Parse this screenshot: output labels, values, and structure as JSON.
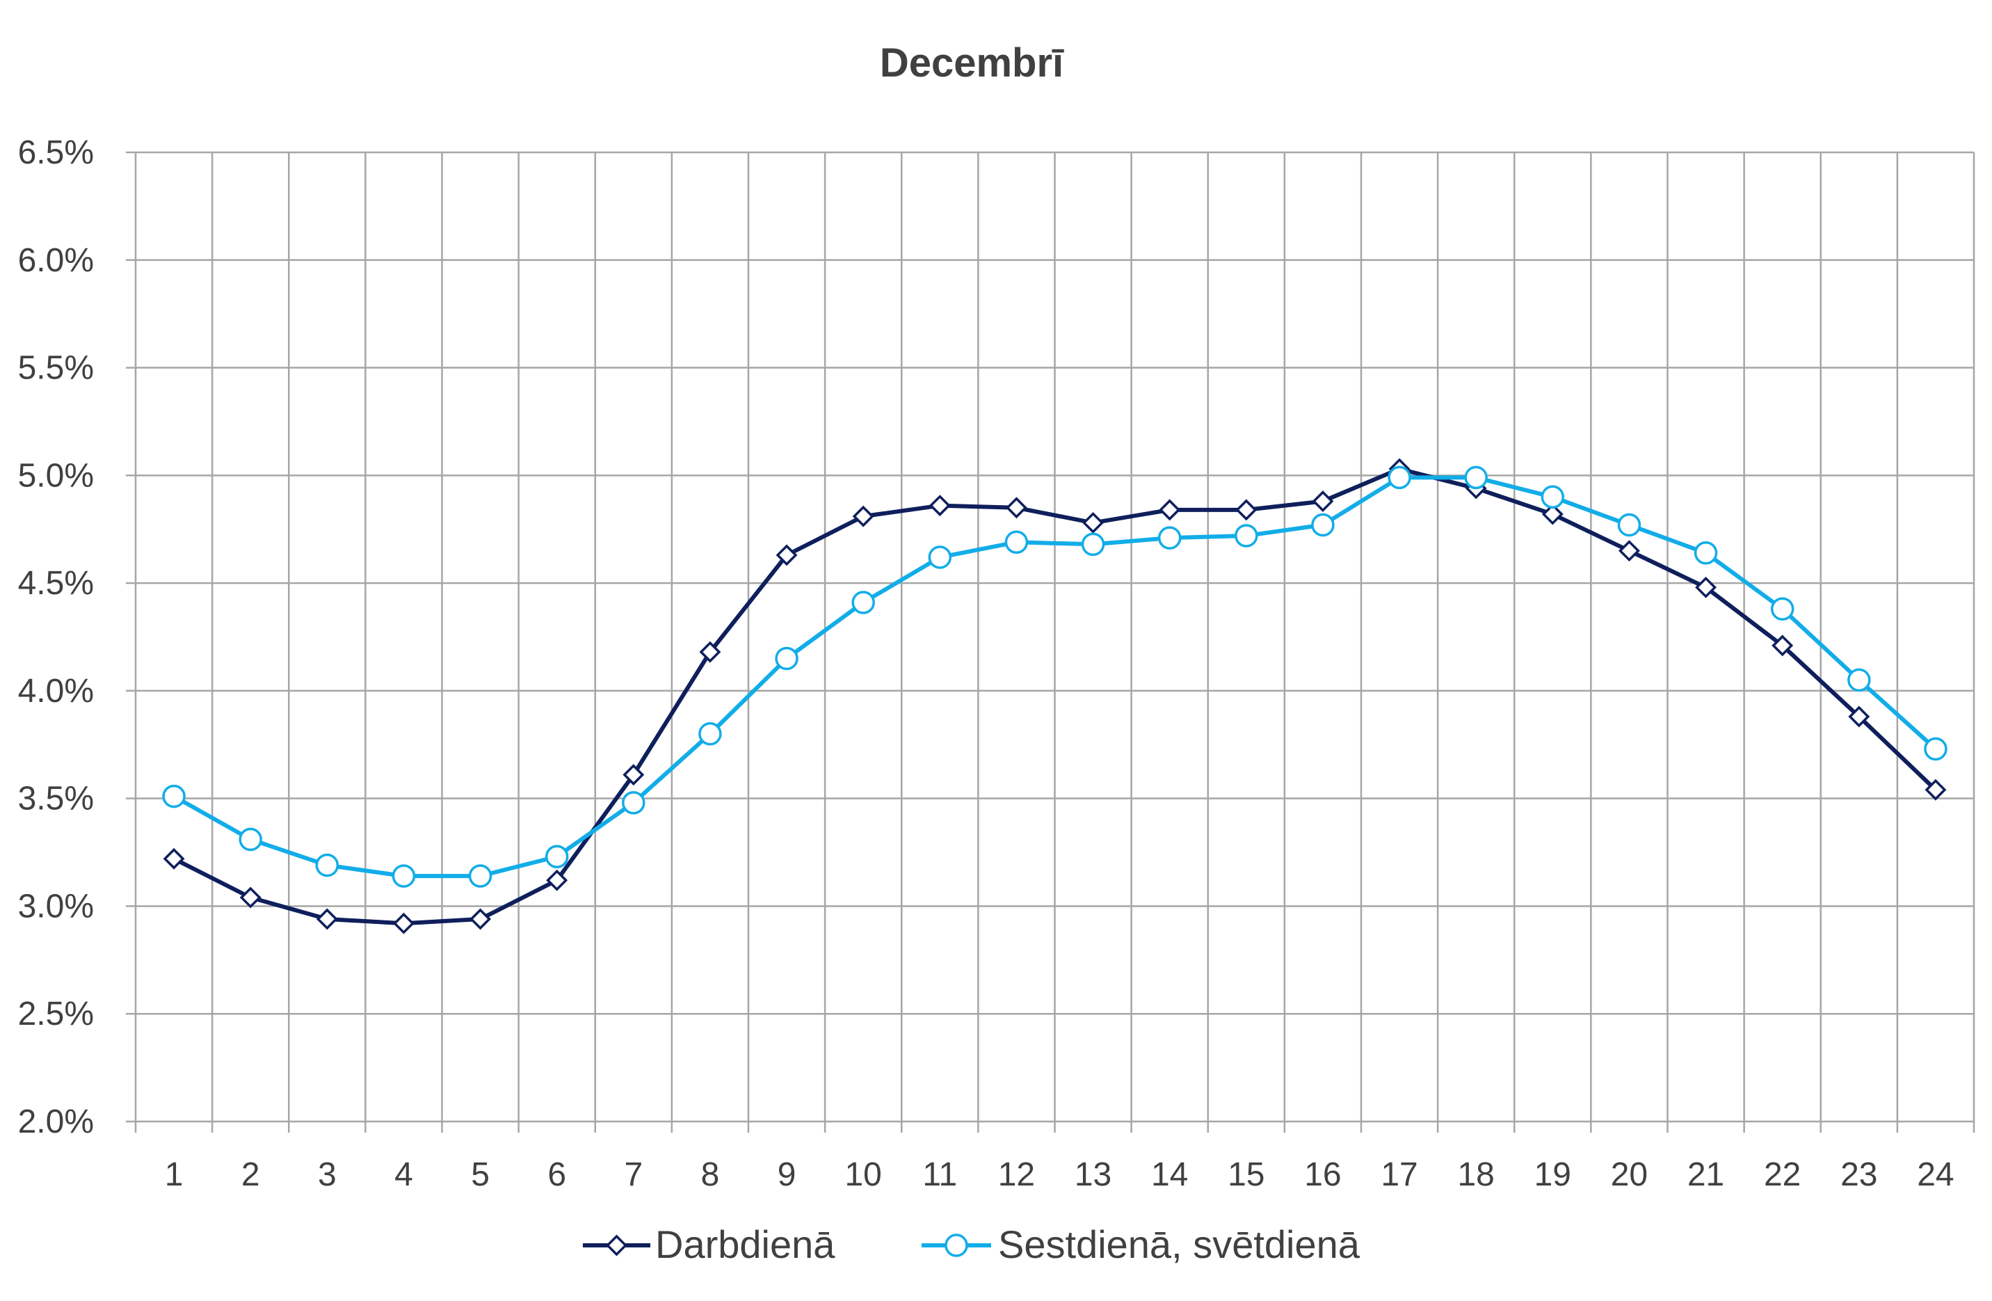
{
  "chart_data": {
    "type": "line",
    "title": "Decembrī",
    "xlabel": "",
    "ylabel": "",
    "categories": [
      "1",
      "2",
      "3",
      "4",
      "5",
      "6",
      "7",
      "8",
      "9",
      "10",
      "11",
      "12",
      "13",
      "14",
      "15",
      "16",
      "17",
      "18",
      "19",
      "20",
      "21",
      "22",
      "23",
      "24"
    ],
    "ylim": [
      2.0,
      6.5
    ],
    "ytick_step": 0.5,
    "ytick_format": "percent_1dp",
    "grid": true,
    "legend_position": "bottom",
    "series": [
      {
        "name": "Darbdienā",
        "color": "#0f1f5c",
        "marker": "diamond",
        "values": [
          3.22,
          3.04,
          2.94,
          2.92,
          2.94,
          3.12,
          3.61,
          4.18,
          4.63,
          4.81,
          4.86,
          4.85,
          4.78,
          4.84,
          4.84,
          4.88,
          5.03,
          4.94,
          4.82,
          4.65,
          4.48,
          4.21,
          3.88,
          3.54
        ]
      },
      {
        "name": "Sestdienā, svētdienā",
        "color": "#12ade8",
        "marker": "circle",
        "values": [
          3.51,
          3.31,
          3.19,
          3.14,
          3.14,
          3.23,
          3.48,
          3.8,
          4.15,
          4.41,
          4.62,
          4.69,
          4.68,
          4.71,
          4.72,
          4.77,
          4.99,
          4.99,
          4.9,
          4.77,
          4.64,
          4.38,
          4.05,
          3.73
        ]
      }
    ]
  }
}
